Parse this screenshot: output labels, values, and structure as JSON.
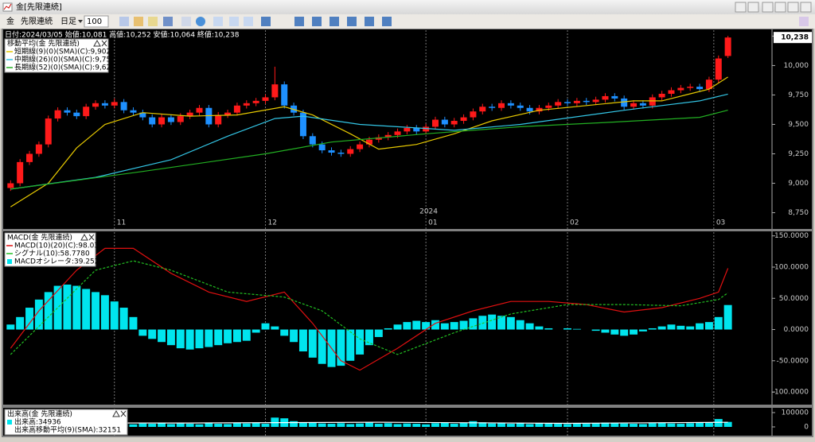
{
  "window": {
    "title": "金[先限連続]",
    "toolbar": [
      "金",
      "先限連続",
      "日足",
      "100"
    ]
  },
  "chart_data": [
    {
      "type": "candlestick",
      "header": "日付:2024/03/05 始値:10,081 高値:10,252 安値:10,064 終値:10,238",
      "legend_title": "移動平均(金 先限連続)",
      "x": [
        1,
        2,
        3,
        4,
        5,
        6,
        7,
        8,
        9,
        10,
        11,
        12,
        13,
        14,
        15,
        16,
        17,
        18,
        19,
        20,
        21,
        22,
        23,
        24,
        25,
        26,
        27,
        28,
        29,
        30,
        31,
        32,
        33,
        34,
        35,
        36,
        37,
        38,
        39,
        40,
        41,
        42,
        43,
        44,
        45,
        46,
        47,
        48,
        49,
        50,
        51,
        52,
        53,
        54,
        55,
        56,
        57,
        58,
        59,
        60,
        61,
        62,
        63,
        64,
        65,
        66,
        67,
        68,
        69,
        70,
        71,
        72,
        73,
        74,
        75,
        76,
        77
      ],
      "open": [
        8960,
        9000,
        9180,
        9250,
        9330,
        9550,
        9620,
        9600,
        9570,
        9650,
        9680,
        9660,
        9690,
        9620,
        9600,
        9560,
        9500,
        9560,
        9520,
        9570,
        9600,
        9640,
        9500,
        9580,
        9600,
        9660,
        9680,
        9700,
        9730,
        9840,
        9660,
        9600,
        9400,
        9330,
        9280,
        9260,
        9250,
        9290,
        9330,
        9370,
        9390,
        9410,
        9440,
        9470,
        9440,
        9480,
        9540,
        9500,
        9530,
        9560,
        9610,
        9650,
        9640,
        9680,
        9660,
        9640,
        9610,
        9640,
        9660,
        9690,
        9680,
        9700,
        9690,
        9710,
        9740,
        9720,
        9650,
        9680,
        9660,
        9730,
        9760,
        9790,
        9810,
        9820,
        9800,
        9880,
        10081
      ],
      "high": [
        9025,
        9205,
        9275,
        9355,
        9575,
        9645,
        9645,
        9625,
        9675,
        9705,
        9705,
        9720,
        9715,
        9645,
        9625,
        9585,
        9585,
        9585,
        9595,
        9625,
        9665,
        9665,
        9605,
        9625,
        9685,
        9705,
        9725,
        9755,
        9990,
        9865,
        9685,
        9625,
        9425,
        9355,
        9305,
        9285,
        9315,
        9355,
        9395,
        9415,
        9435,
        9465,
        9495,
        9495,
        9505,
        9565,
        9565,
        9555,
        9585,
        9635,
        9675,
        9675,
        9705,
        9705,
        9685,
        9665,
        9665,
        9685,
        9715,
        9715,
        9725,
        9725,
        9735,
        9765,
        9765,
        9745,
        9705,
        9705,
        9755,
        9785,
        9815,
        9835,
        9845,
        9845,
        9905,
        10085,
        10252
      ],
      "low": [
        8935,
        8975,
        9155,
        9225,
        9305,
        9525,
        9575,
        9545,
        9545,
        9625,
        9635,
        9635,
        9595,
        9575,
        9535,
        9475,
        9475,
        9495,
        9495,
        9545,
        9575,
        9475,
        9475,
        9555,
        9575,
        9635,
        9655,
        9675,
        9705,
        9635,
        9575,
        9375,
        9305,
        9255,
        9235,
        9225,
        9225,
        9265,
        9305,
        9345,
        9365,
        9385,
        9415,
        9415,
        9415,
        9455,
        9475,
        9475,
        9505,
        9535,
        9585,
        9615,
        9615,
        9635,
        9615,
        9585,
        9585,
        9615,
        9635,
        9655,
        9655,
        9665,
        9665,
        9685,
        9695,
        9625,
        9625,
        9635,
        9635,
        9705,
        9735,
        9765,
        9785,
        9775,
        9775,
        9855,
        10064
      ],
      "close": [
        9000,
        9180,
        9250,
        9330,
        9550,
        9620,
        9600,
        9570,
        9650,
        9680,
        9660,
        9690,
        9620,
        9600,
        9560,
        9500,
        9560,
        9520,
        9570,
        9600,
        9640,
        9500,
        9580,
        9600,
        9660,
        9680,
        9700,
        9730,
        9840,
        9660,
        9600,
        9400,
        9330,
        9280,
        9260,
        9250,
        9290,
        9330,
        9370,
        9390,
        9410,
        9440,
        9470,
        9440,
        9480,
        9540,
        9500,
        9530,
        9560,
        9610,
        9650,
        9640,
        9680,
        9660,
        9640,
        9610,
        9640,
        9660,
        9690,
        9680,
        9700,
        9690,
        9710,
        9740,
        9720,
        9650,
        9680,
        9660,
        9730,
        9760,
        9790,
        9810,
        9820,
        9800,
        9880,
        10060,
        10238
      ],
      "up_color": "#ff1a1a",
      "down_color": "#1e90ff",
      "lines": [
        {
          "name": "短期線(9)(0)(SMA)(C):9,902",
          "color": "#e6c800",
          "x": [
            1,
            5,
            8,
            11,
            15,
            20,
            25,
            30,
            33,
            37,
            40,
            44,
            48,
            52,
            57,
            62,
            67,
            70,
            73,
            75,
            77
          ],
          "values": [
            8800,
            9000,
            9300,
            9500,
            9600,
            9570,
            9580,
            9650,
            9580,
            9420,
            9290,
            9330,
            9420,
            9530,
            9620,
            9660,
            9700,
            9700,
            9760,
            9800,
            9902
          ]
        },
        {
          "name": "中期線(26)(0)(SMA)(C):9,757",
          "color": "#33c6e6",
          "x": [
            1,
            10,
            18,
            24,
            29,
            32,
            38,
            44,
            48,
            55,
            66,
            74,
            77
          ],
          "values": [
            8950,
            9050,
            9200,
            9400,
            9550,
            9570,
            9500,
            9470,
            9450,
            9500,
            9620,
            9700,
            9757
          ]
        },
        {
          "name": "長期線(52)(0)(SMA)(C):9,621",
          "color": "#22b022",
          "x": [
            1,
            15,
            28,
            35,
            45,
            55,
            65,
            74,
            77
          ],
          "values": [
            8950,
            9100,
            9250,
            9350,
            9420,
            9480,
            9520,
            9560,
            9621
          ]
        }
      ],
      "xlim": [
        0.3,
        81.5
      ],
      "xticks": [
        {
          "value": 12,
          "label": "11"
        },
        {
          "value": 28,
          "label": "12"
        },
        {
          "value": 45,
          "label": "01"
        },
        {
          "value": 60,
          "label": "02"
        },
        {
          "value": 75.5,
          "label": "03"
        }
      ],
      "year_marker": {
        "value": 45,
        "label": "2024"
      },
      "ylim": [
        8720,
        10300
      ],
      "yticks": [
        {
          "value": 8750,
          "label": "8,750"
        },
        {
          "value": 9000,
          "label": "9,000"
        },
        {
          "value": 9250,
          "label": "9,250"
        },
        {
          "value": 9500,
          "label": "9,500"
        },
        {
          "value": 9750,
          "label": "9,750"
        },
        {
          "value": 10000,
          "label": "10,000"
        },
        {
          "value": 10250,
          "label": "10,250"
        }
      ],
      "last_label": {
        "value": 10238,
        "label": "10,238"
      }
    },
    {
      "type": "macd",
      "legend_title": "MACD(金 先限連続)",
      "x": [
        1,
        2,
        3,
        4,
        5,
        6,
        7,
        8,
        9,
        10,
        11,
        12,
        13,
        14,
        15,
        16,
        17,
        18,
        19,
        20,
        21,
        22,
        23,
        24,
        25,
        26,
        27,
        28,
        29,
        30,
        31,
        32,
        33,
        34,
        35,
        36,
        37,
        38,
        39,
        40,
        41,
        42,
        43,
        44,
        45,
        46,
        47,
        48,
        49,
        50,
        51,
        52,
        53,
        54,
        55,
        56,
        57,
        58,
        59,
        60,
        61,
        62,
        63,
        64,
        65,
        66,
        67,
        68,
        69,
        70,
        71,
        72,
        73,
        74,
        75,
        76,
        77
      ],
      "bars": {
        "name": "MACDオシレータ:39.2523",
        "color": "#00e5ee",
        "values": [
          8,
          20,
          35,
          48,
          60,
          70,
          72,
          70,
          65,
          60,
          55,
          45,
          35,
          20,
          -10,
          -15,
          -20,
          -25,
          -30,
          -32,
          -30,
          -28,
          -25,
          -22,
          -20,
          -18,
          -5,
          10,
          5,
          -10,
          -20,
          -35,
          -45,
          -55,
          -60,
          -58,
          -50,
          -40,
          -25,
          -12,
          2,
          8,
          12,
          14,
          12,
          15,
          10,
          12,
          14,
          18,
          22,
          24,
          22,
          20,
          15,
          10,
          5,
          2,
          0,
          2,
          1,
          0,
          -2,
          -5,
          -8,
          -10,
          -8,
          -3,
          2,
          5,
          8,
          6,
          5,
          10,
          12,
          20,
          39.2523
        ]
      },
      "lines": [
        {
          "name": "MACD(10)(20)(C):98.0303",
          "color": "#e01010",
          "x": [
            1,
            4,
            8,
            11,
            14,
            18,
            22,
            26,
            30,
            33,
            36,
            38,
            42,
            46,
            50,
            54,
            58,
            62,
            66,
            70,
            74,
            76,
            77
          ],
          "values": [
            -30,
            30,
            95,
            130,
            130,
            90,
            60,
            45,
            60,
            10,
            -50,
            -65,
            -30,
            10,
            30,
            45,
            45,
            40,
            28,
            35,
            50,
            60,
            98.0303
          ]
        },
        {
          "name": "シグナル(10):58.7780",
          "color": "#22c022",
          "dashed": true,
          "x": [
            1,
            5,
            10,
            14,
            18,
            24,
            30,
            34,
            38,
            42,
            48,
            54,
            60,
            66,
            72,
            76,
            77
          ],
          "values": [
            -40,
            20,
            95,
            110,
            95,
            60,
            52,
            30,
            -15,
            -40,
            -5,
            25,
            40,
            40,
            38,
            48,
            58.778
          ]
        }
      ],
      "xlim": [
        0.3,
        81.5
      ],
      "ylim": [
        -119,
        156
      ],
      "yticks": [
        {
          "value": 150,
          "label": "150.0000"
        },
        {
          "value": 100,
          "label": "100.0000"
        },
        {
          "value": 50,
          "label": "50.0000"
        },
        {
          "value": 0,
          "label": "0.0000"
        },
        {
          "value": -50,
          "label": "-50.0000"
        },
        {
          "value": -100,
          "label": "-100.0000"
        }
      ]
    },
    {
      "type": "volume",
      "legend_title": "出来高(金 先限連続)",
      "x": [
        1,
        2,
        3,
        4,
        5,
        6,
        7,
        8,
        9,
        10,
        11,
        12,
        13,
        14,
        15,
        16,
        17,
        18,
        19,
        20,
        21,
        22,
        23,
        24,
        25,
        26,
        27,
        28,
        29,
        30,
        31,
        32,
        33,
        34,
        35,
        36,
        37,
        38,
        39,
        40,
        41,
        42,
        43,
        44,
        45,
        46,
        47,
        48,
        49,
        50,
        51,
        52,
        53,
        54,
        55,
        56,
        57,
        58,
        59,
        60,
        61,
        62,
        63,
        64,
        65,
        66,
        67,
        68,
        69,
        70,
        71,
        72,
        73,
        74,
        75,
        76,
        77
      ],
      "bars": {
        "name": "出来高:34936",
        "color": "#00e5ee",
        "values": [
          30000,
          25000,
          28000,
          22000,
          40000,
          26000,
          30000,
          20000,
          24000,
          22000,
          28000,
          26000,
          30000,
          18000,
          24000,
          22000,
          26000,
          20000,
          24000,
          22000,
          18000,
          26000,
          22000,
          20000,
          30000,
          24000,
          28000,
          22000,
          65000,
          60000,
          40000,
          30000,
          28000,
          24000,
          22000,
          26000,
          20000,
          24000,
          30000,
          22000,
          26000,
          20000,
          24000,
          22000,
          18000,
          26000,
          28000,
          22000,
          30000,
          40000,
          32000,
          24000,
          26000,
          22000,
          28000,
          20000,
          26000,
          24000,
          22000,
          20000,
          24000,
          22000,
          26000,
          30000,
          28000,
          24000,
          22000,
          20000,
          26000,
          28000,
          24000,
          22000,
          26000,
          28000,
          30000,
          55000,
          34936
        ]
      },
      "lines": [
        {
          "name": "出来高移動平均(9)(SMA):32151",
          "color": "#ffffff",
          "x": [
            1,
            20,
            40,
            60,
            77
          ],
          "values": [
            28000,
            27000,
            33000,
            25000,
            32151
          ]
        }
      ],
      "xlim": [
        0.3,
        81.5
      ],
      "ylim": [
        -50000,
        127778
      ],
      "yticks": [
        100000,
        0
      ]
    }
  ]
}
